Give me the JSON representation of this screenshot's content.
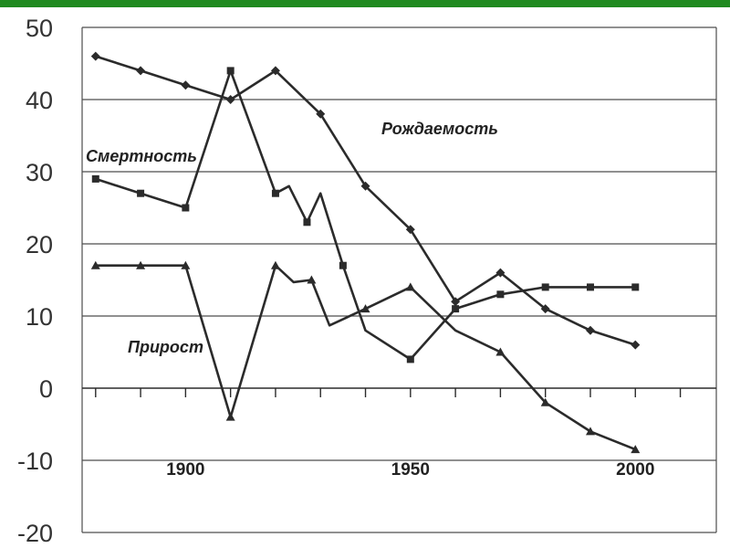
{
  "chart_data": {
    "type": "line",
    "ylim": [
      -20,
      50
    ],
    "xlim": [
      1877,
      2018
    ],
    "y_ticks": [
      "50",
      "40",
      "30",
      "20",
      "10",
      "0",
      "-10",
      "-20"
    ],
    "x_tick_labels": [
      {
        "label": "1900",
        "x": 1900
      },
      {
        "label": "1950",
        "x": 1950
      },
      {
        "label": "2000",
        "x": 2000
      }
    ],
    "grid": "horizontal",
    "colors": {
      "line": "#2b2b2b",
      "grid": "#4d4d4d",
      "header_bar": "#1f8a1f"
    },
    "series": [
      {
        "name": "Рождаемость",
        "marker": "diamond",
        "x": [
          1880,
          1890,
          1900,
          1910,
          1920,
          1930,
          1940,
          1950,
          1960,
          1970,
          1980,
          1990,
          2000
        ],
        "y": [
          46,
          44,
          42,
          40,
          44,
          38,
          28,
          22,
          12,
          16,
          11,
          8,
          6
        ]
      },
      {
        "name": "Смертность",
        "marker": "square",
        "x": [
          1880,
          1890,
          1900,
          1910,
          1920,
          1923,
          1927,
          1930,
          1935,
          1940,
          1950,
          1960,
          1970,
          1980,
          1990,
          2000
        ],
        "y": [
          29,
          27,
          25,
          44,
          27,
          28,
          23,
          27,
          17,
          8,
          4,
          11,
          13,
          14,
          14,
          14
        ],
        "markers_at": [
          1880,
          1890,
          1900,
          1910,
          1920,
          1927,
          1935,
          1950,
          1960,
          1970,
          1980,
          1990,
          2000
        ]
      },
      {
        "name": "Прирост",
        "marker": "triangle",
        "x": [
          1880,
          1890,
          1900,
          1910,
          1920,
          1924,
          1928,
          1932,
          1940,
          1950,
          1960,
          1970,
          1980,
          1990,
          2000
        ],
        "y": [
          17,
          17,
          17,
          -4,
          17,
          14.7,
          15,
          8.7,
          11,
          14,
          8,
          5,
          -2,
          -6,
          -8.5
        ],
        "markers_at": [
          1880,
          1890,
          1900,
          1910,
          1920,
          1928,
          1940,
          1950,
          1970,
          1980,
          1990,
          2000
        ]
      }
    ]
  }
}
